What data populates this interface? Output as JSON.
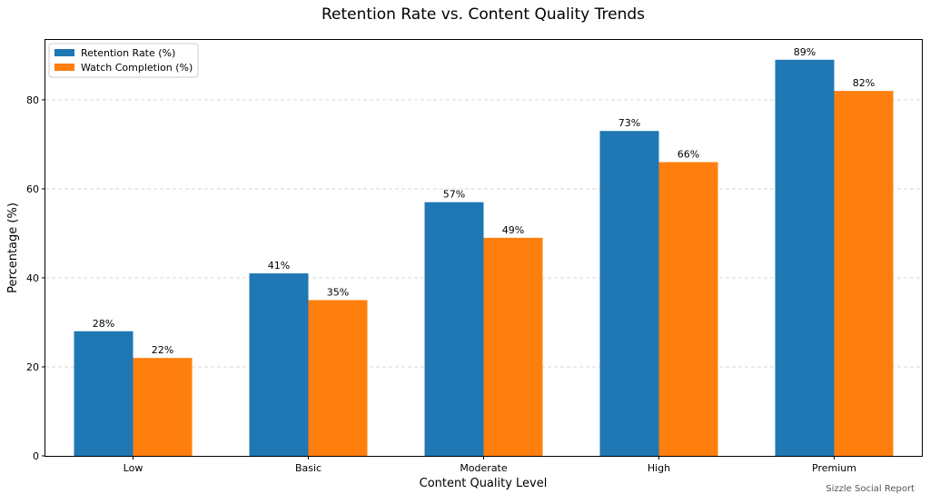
{
  "chart_data": {
    "type": "bar",
    "title": "Retention Rate vs. Content Quality Trends",
    "xlabel": "Content Quality Level",
    "ylabel": "Percentage (%)",
    "categories": [
      "Low",
      "Basic",
      "Moderate",
      "High",
      "Premium"
    ],
    "series": [
      {
        "name": "Retention Rate (%)",
        "values": [
          28,
          41,
          57,
          73,
          89
        ],
        "color": "#1f77b4",
        "labels": [
          "28%",
          "41%",
          "57%",
          "73%",
          "89%"
        ]
      },
      {
        "name": "Watch Completion (%)",
        "values": [
          22,
          35,
          49,
          66,
          82
        ],
        "color": "#ff7f0e",
        "labels": [
          "22%",
          "35%",
          "49%",
          "66%",
          "82%"
        ]
      }
    ],
    "ylim": [
      0,
      93.45
    ],
    "yticks": [
      0,
      20,
      40,
      60,
      80
    ],
    "ytick_labels": [
      "0",
      "20",
      "40",
      "60",
      "80"
    ],
    "grid": "y-dashed",
    "legend_position": "top-left"
  },
  "footer": {
    "source": "Sizzle Social Report"
  }
}
